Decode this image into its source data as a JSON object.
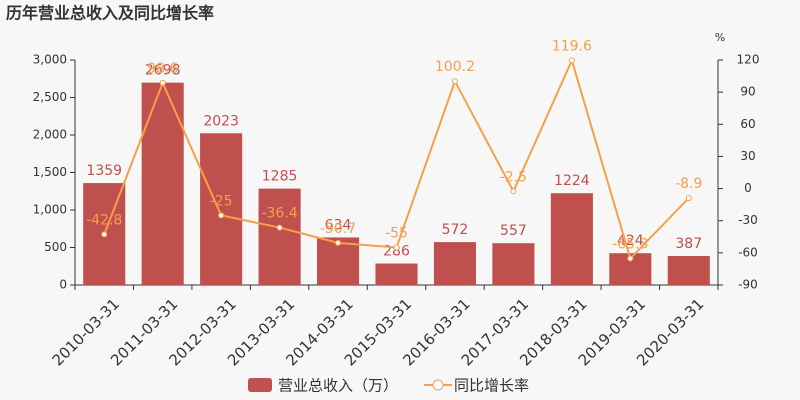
{
  "chart_data": {
    "type": "bar-line",
    "title": "历年营业总收入及同比增长率",
    "y2_unit": "%",
    "categories": [
      "2010-03-31",
      "2011-03-31",
      "2012-03-31",
      "2013-03-31",
      "2014-03-31",
      "2015-03-31",
      "2016-03-31",
      "2017-03-31",
      "2018-03-31",
      "2019-03-31",
      "2020-03-31"
    ],
    "series": [
      {
        "name": "营业总收入（万）",
        "color": "#c0504d",
        "type": "bar",
        "values": [
          1359,
          2698,
          2023,
          1285,
          634,
          286,
          572,
          557,
          1224,
          424,
          387
        ]
      },
      {
        "name": "同比增长率",
        "color": "#f5a04a",
        "type": "line",
        "axis": "y2",
        "values": [
          -42.8,
          98.6,
          -25,
          -36.4,
          -50.7,
          -55,
          100.2,
          -2.5,
          119.6,
          -65.3,
          -8.9
        ]
      }
    ],
    "ylim": [
      0,
      3000
    ],
    "yticks": [
      0,
      500,
      {
        "value": 1000,
        "label": "1,000"
      },
      {
        "value": 1500,
        "label": "1,500"
      },
      {
        "value": 2000,
        "label": "2,000"
      },
      {
        "value": 2500,
        "label": "2,500"
      },
      {
        "value": 3000,
        "label": "3,000"
      }
    ],
    "y2lim": [
      -90,
      120
    ],
    "y2ticks": [
      -90,
      -60,
      -30,
      0,
      30,
      60,
      90,
      120
    ]
  }
}
